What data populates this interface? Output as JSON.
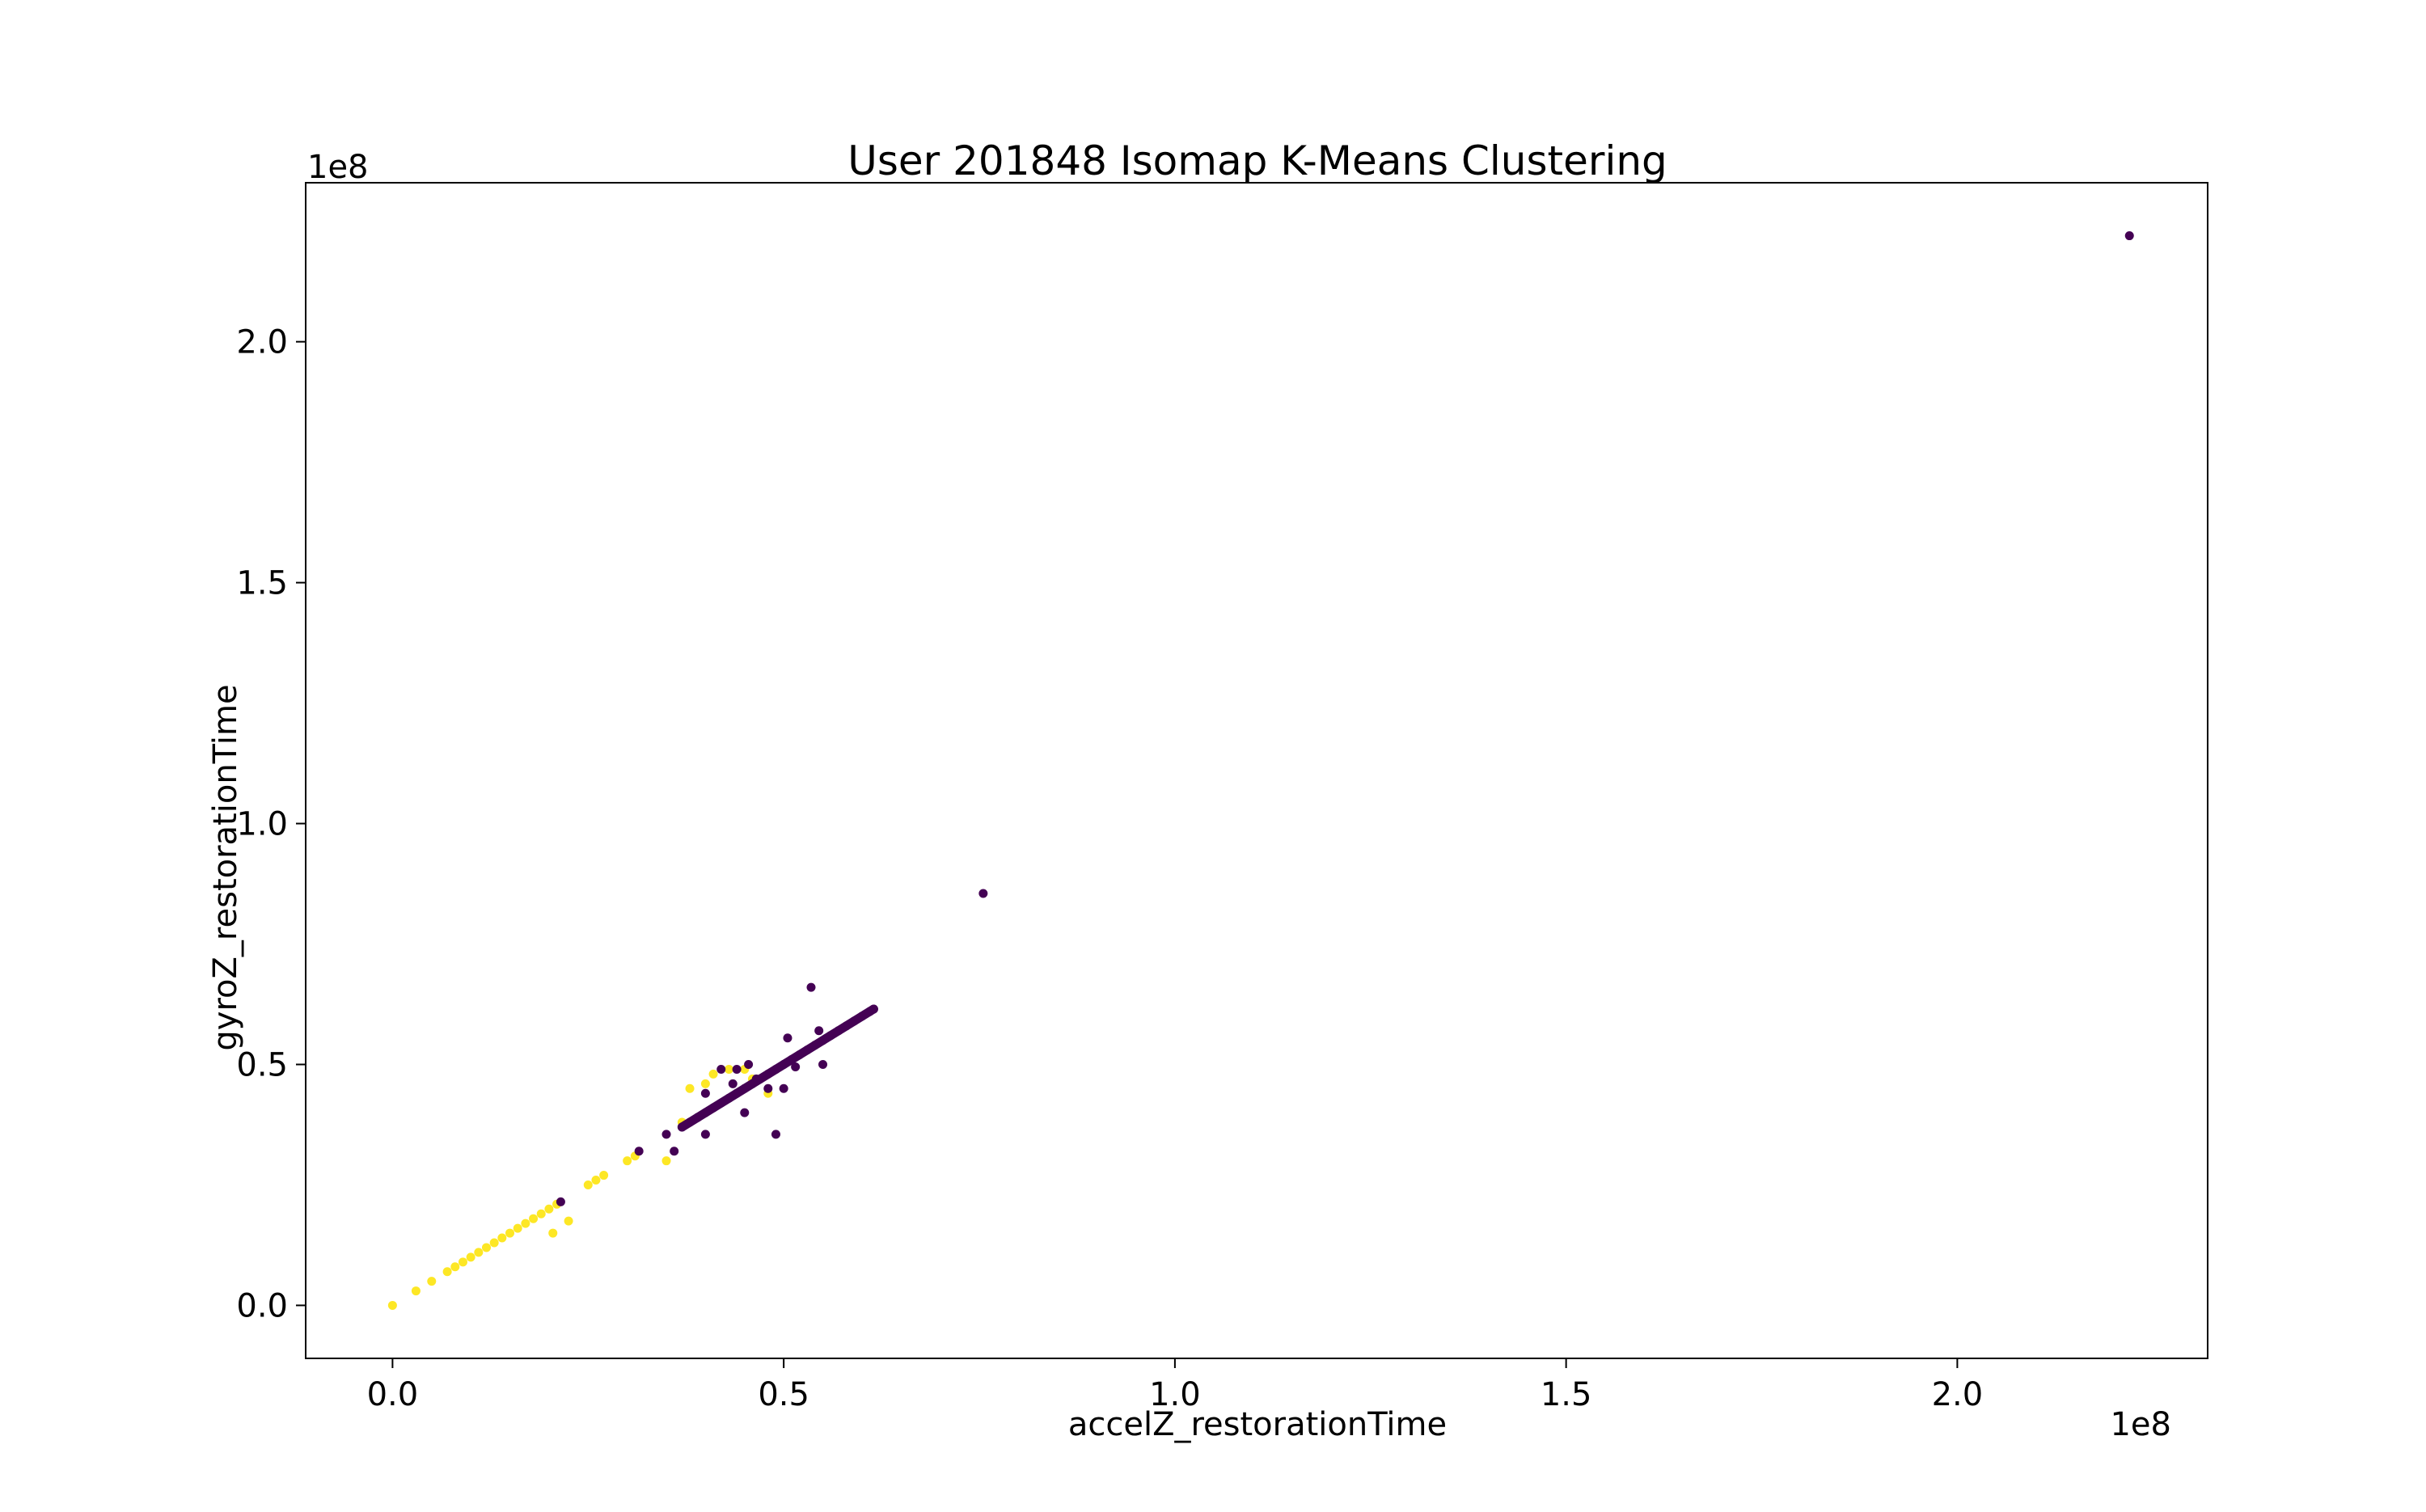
{
  "chart_data": {
    "type": "scatter",
    "title": "User 201848 Isomap K-Means Clustering",
    "xlabel": "accelZ_restorationTime",
    "ylabel": "gyroZ_restorationTime",
    "x_offset_label": "1e8",
    "y_offset_label": "1e8",
    "xlim": [
      -0.111,
      2.32
    ],
    "ylim": [
      -0.11,
      2.33
    ],
    "x_ticks": [
      0.0,
      0.5,
      1.0,
      1.5,
      2.0
    ],
    "x_tick_labels": [
      "0.0",
      "0.5",
      "1.0",
      "1.5",
      "2.0"
    ],
    "y_ticks": [
      0.0,
      0.5,
      1.0,
      1.5,
      2.0
    ],
    "y_tick_labels": [
      "0.0",
      "0.5",
      "1.0",
      "1.5",
      "2.0"
    ],
    "grid": false,
    "colors": {
      "cluster_0": "#440154",
      "cluster_1": "#fde725",
      "frame": "#000000"
    },
    "series": [
      {
        "cluster": 0,
        "color": "#440154",
        "points": [
          [
            0.37,
            0.37
          ],
          [
            0.38,
            0.38
          ],
          [
            0.39,
            0.39
          ],
          [
            0.4,
            0.4
          ],
          [
            0.41,
            0.41
          ],
          [
            0.42,
            0.42
          ],
          [
            0.43,
            0.43
          ],
          [
            0.44,
            0.44
          ],
          [
            0.45,
            0.45
          ],
          [
            0.46,
            0.46
          ],
          [
            0.47,
            0.47
          ],
          [
            0.48,
            0.48
          ],
          [
            0.49,
            0.49
          ],
          [
            0.5,
            0.5
          ],
          [
            0.51,
            0.51
          ],
          [
            0.52,
            0.52
          ],
          [
            0.53,
            0.53
          ],
          [
            0.54,
            0.54
          ],
          [
            0.55,
            0.55
          ],
          [
            0.56,
            0.56
          ],
          [
            0.57,
            0.57
          ],
          [
            0.58,
            0.58
          ],
          [
            0.59,
            0.59
          ],
          [
            0.6,
            0.6
          ],
          [
            0.61,
            0.61
          ],
          [
            0.615,
            0.615
          ],
          [
            0.535,
            0.66
          ],
          [
            0.505,
            0.555
          ],
          [
            0.545,
            0.57
          ],
          [
            0.515,
            0.495
          ],
          [
            0.55,
            0.5
          ],
          [
            0.48,
            0.45
          ],
          [
            0.5,
            0.45
          ],
          [
            0.49,
            0.355
          ],
          [
            0.4,
            0.355
          ],
          [
            0.36,
            0.32
          ],
          [
            0.35,
            0.355
          ],
          [
            0.315,
            0.32
          ],
          [
            0.45,
            0.4
          ],
          [
            0.4,
            0.44
          ],
          [
            0.42,
            0.49
          ],
          [
            0.44,
            0.49
          ],
          [
            0.455,
            0.5
          ],
          [
            0.435,
            0.46
          ],
          [
            0.465,
            0.47
          ],
          [
            0.215,
            0.215
          ],
          [
            0.755,
            0.855
          ],
          [
            2.22,
            2.22
          ]
        ]
      },
      {
        "cluster": 1,
        "color": "#fde725",
        "points": [
          [
            0.0,
            0.0
          ],
          [
            0.03,
            0.03
          ],
          [
            0.05,
            0.05
          ],
          [
            0.07,
            0.07
          ],
          [
            0.08,
            0.08
          ],
          [
            0.09,
            0.09
          ],
          [
            0.1,
            0.1
          ],
          [
            0.11,
            0.11
          ],
          [
            0.12,
            0.12
          ],
          [
            0.13,
            0.13
          ],
          [
            0.14,
            0.14
          ],
          [
            0.15,
            0.15
          ],
          [
            0.16,
            0.16
          ],
          [
            0.17,
            0.17
          ],
          [
            0.18,
            0.18
          ],
          [
            0.19,
            0.19
          ],
          [
            0.2,
            0.2
          ],
          [
            0.21,
            0.21
          ],
          [
            0.205,
            0.15
          ],
          [
            0.225,
            0.175
          ],
          [
            0.25,
            0.25
          ],
          [
            0.26,
            0.26
          ],
          [
            0.27,
            0.27
          ],
          [
            0.3,
            0.3
          ],
          [
            0.31,
            0.31
          ],
          [
            0.35,
            0.3
          ],
          [
            0.38,
            0.45
          ],
          [
            0.4,
            0.46
          ],
          [
            0.41,
            0.48
          ],
          [
            0.43,
            0.49
          ],
          [
            0.45,
            0.49
          ],
          [
            0.46,
            0.47
          ],
          [
            0.48,
            0.44
          ],
          [
            0.37,
            0.38
          ]
        ]
      }
    ]
  }
}
